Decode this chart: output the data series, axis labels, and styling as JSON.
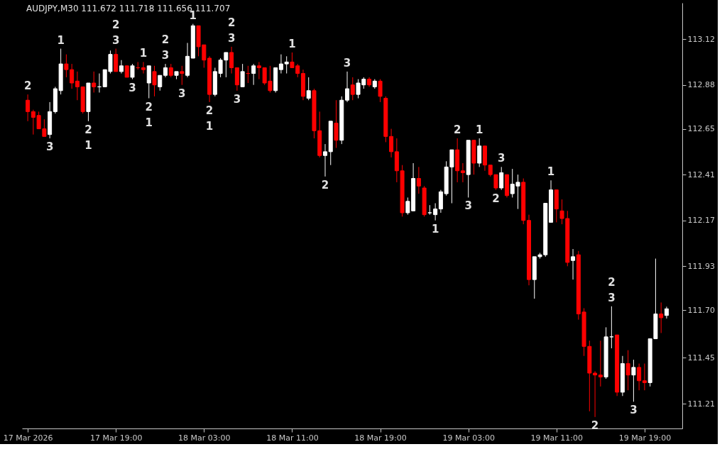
{
  "chart_data": {
    "type": "candlestick",
    "title": "AUDJPY,M30 111.672 111.718 111.656 111.707",
    "x": [
      "2026-03-17T11:00",
      "2026-03-17T11:30",
      "2026-03-17T12:00",
      "2026-03-17T12:30",
      "2026-03-17T13:00",
      "2026-03-17T13:30",
      "2026-03-17T14:00",
      "2026-03-17T14:30",
      "2026-03-17T15:00",
      "2026-03-17T15:30",
      "2026-03-17T16:00",
      "2026-03-17T16:30",
      "2026-03-17T17:00",
      "2026-03-17T17:30",
      "2026-03-17T18:00",
      "2026-03-17T18:30",
      "2026-03-17T19:00",
      "2026-03-17T19:30",
      "2026-03-17T20:00",
      "2026-03-17T20:30",
      "2026-03-17T21:00",
      "2026-03-17T21:30",
      "2026-03-17T22:00",
      "2026-03-17T22:30",
      "2026-03-17T23:00",
      "2026-03-17T23:30",
      "2026-03-18T00:00",
      "2026-03-18T00:30",
      "2026-03-18T01:00",
      "2026-03-18T01:30",
      "2026-03-18T02:00",
      "2026-03-18T02:30",
      "2026-03-18T03:00",
      "2026-03-18T03:30",
      "2026-03-18T04:00",
      "2026-03-18T04:30",
      "2026-03-18T05:00",
      "2026-03-18T05:30",
      "2026-03-18T06:00",
      "2026-03-18T06:30",
      "2026-03-18T07:00",
      "2026-03-18T07:30",
      "2026-03-18T08:00",
      "2026-03-18T08:30",
      "2026-03-18T09:00",
      "2026-03-18T09:30",
      "2026-03-18T10:00",
      "2026-03-18T10:30",
      "2026-03-18T11:00",
      "2026-03-18T11:30",
      "2026-03-18T12:00",
      "2026-03-18T12:30",
      "2026-03-18T13:00",
      "2026-03-18T13:30",
      "2026-03-18T14:00",
      "2026-03-18T14:30",
      "2026-03-18T15:00",
      "2026-03-18T15:30",
      "2026-03-18T16:00",
      "2026-03-18T16:30",
      "2026-03-18T17:00",
      "2026-03-18T17:30",
      "2026-03-18T18:00",
      "2026-03-18T18:30",
      "2026-03-18T19:00",
      "2026-03-18T19:30",
      "2026-03-18T20:00",
      "2026-03-18T20:30",
      "2026-03-18T21:00",
      "2026-03-18T21:30",
      "2026-03-18T22:00",
      "2026-03-18T22:30",
      "2026-03-18T23:00",
      "2026-03-18T23:30",
      "2026-03-19T00:00",
      "2026-03-19T00:30",
      "2026-03-19T01:00",
      "2026-03-19T01:30",
      "2026-03-19T02:00",
      "2026-03-19T02:30",
      "2026-03-19T03:00",
      "2026-03-19T03:30",
      "2026-03-19T04:00",
      "2026-03-19T04:30",
      "2026-03-19T05:00",
      "2026-03-19T05:30",
      "2026-03-19T06:00",
      "2026-03-19T06:30",
      "2026-03-19T07:00",
      "2026-03-19T07:30",
      "2026-03-19T08:00",
      "2026-03-19T08:30",
      "2026-03-19T09:00",
      "2026-03-19T09:30",
      "2026-03-19T10:00",
      "2026-03-19T10:30",
      "2026-03-19T11:00",
      "2026-03-19T11:30",
      "2026-03-19T12:00",
      "2026-03-19T12:30",
      "2026-03-19T13:00",
      "2026-03-19T13:30",
      "2026-03-19T14:00",
      "2026-03-19T14:30",
      "2026-03-19T15:00",
      "2026-03-19T15:30",
      "2026-03-19T16:00",
      "2026-03-19T16:30",
      "2026-03-19T17:00",
      "2026-03-19T17:30",
      "2026-03-19T18:00",
      "2026-03-19T18:30",
      "2026-03-19T19:00",
      "2026-03-19T19:30",
      "2026-03-19T20:00",
      "2026-03-19T20:30",
      "2026-03-19T21:00"
    ],
    "ohlc": [
      [
        112.8,
        112.83,
        112.69,
        112.74
      ],
      [
        112.74,
        112.75,
        112.62,
        112.71
      ],
      [
        112.72,
        112.74,
        112.65,
        112.65
      ],
      [
        112.65,
        112.7,
        112.61,
        112.61
      ],
      [
        112.62,
        112.79,
        112.6,
        112.74
      ],
      [
        112.74,
        112.87,
        112.73,
        112.86
      ],
      [
        112.85,
        113.07,
        112.83,
        112.99
      ],
      [
        112.99,
        113.04,
        112.92,
        112.96
      ],
      [
        112.96,
        112.99,
        112.86,
        112.89
      ],
      [
        112.9,
        112.95,
        112.8,
        112.87
      ],
      [
        112.87,
        112.87,
        112.73,
        112.74
      ],
      [
        112.74,
        112.89,
        112.69,
        112.89
      ],
      [
        112.89,
        112.95,
        112.84,
        112.87
      ],
      [
        112.87,
        112.94,
        112.84,
        112.87
      ],
      [
        112.87,
        112.96,
        112.87,
        112.96
      ],
      [
        112.95,
        113.06,
        112.94,
        113.04
      ],
      [
        113.04,
        113.07,
        112.95,
        112.95
      ],
      [
        112.95,
        113.01,
        112.94,
        112.98
      ],
      [
        112.98,
        112.98,
        112.92,
        112.92
      ],
      [
        112.92,
        112.99,
        112.91,
        112.98
      ],
      [
        112.97,
        113.0,
        112.96,
        112.97
      ],
      [
        112.97,
        113.0,
        112.94,
        112.96
      ],
      [
        112.89,
        112.98,
        112.81,
        112.98
      ],
      [
        112.95,
        112.98,
        112.82,
        112.88
      ],
      [
        112.87,
        112.93,
        112.85,
        112.93
      ],
      [
        112.93,
        112.99,
        112.92,
        112.97
      ],
      [
        112.97,
        112.99,
        112.92,
        112.93
      ],
      [
        112.93,
        112.95,
        112.91,
        112.95
      ],
      [
        112.95,
        112.98,
        112.88,
        112.94
      ],
      [
        112.93,
        113.1,
        112.92,
        113.03
      ],
      [
        113.02,
        113.2,
        113.02,
        113.19
      ],
      [
        113.19,
        113.19,
        113.03,
        113.08
      ],
      [
        113.09,
        113.09,
        112.97,
        113.01
      ],
      [
        113.02,
        113.03,
        112.79,
        112.83
      ],
      [
        112.83,
        112.97,
        112.82,
        112.95
      ],
      [
        112.94,
        113.02,
        112.92,
        113.01
      ],
      [
        113.01,
        113.05,
        112.92,
        113.05
      ],
      [
        113.05,
        113.08,
        112.94,
        112.97
      ],
      [
        112.97,
        112.97,
        112.85,
        112.88
      ],
      [
        112.87,
        112.99,
        112.87,
        112.95
      ],
      [
        112.94,
        112.98,
        112.89,
        112.94
      ],
      [
        112.94,
        112.99,
        112.88,
        112.98
      ],
      [
        112.98,
        113.0,
        112.91,
        112.97
      ],
      [
        112.97,
        112.97,
        112.88,
        112.89
      ],
      [
        112.9,
        112.98,
        112.84,
        112.85
      ],
      [
        112.85,
        112.97,
        112.84,
        112.97
      ],
      [
        112.96,
        113.04,
        112.94,
        112.99
      ],
      [
        112.99,
        113.03,
        112.94,
        113.0
      ],
      [
        113.0,
        113.05,
        112.97,
        112.97
      ],
      [
        112.98,
        112.99,
        112.92,
        112.94
      ],
      [
        112.94,
        112.96,
        112.8,
        112.82
      ],
      [
        112.81,
        112.92,
        112.8,
        112.85
      ],
      [
        112.85,
        112.86,
        112.6,
        112.64
      ],
      [
        112.64,
        112.74,
        112.5,
        112.51
      ],
      [
        112.51,
        112.57,
        112.4,
        112.53
      ],
      [
        112.53,
        112.69,
        112.46,
        112.69
      ],
      [
        112.68,
        112.8,
        112.55,
        112.59
      ],
      [
        112.59,
        112.82,
        112.57,
        112.8
      ],
      [
        112.8,
        112.95,
        112.79,
        112.86
      ],
      [
        112.88,
        112.92,
        112.8,
        112.83
      ],
      [
        112.83,
        112.91,
        112.81,
        112.89
      ],
      [
        112.88,
        112.92,
        112.86,
        112.91
      ],
      [
        112.91,
        112.92,
        112.87,
        112.88
      ],
      [
        112.87,
        112.91,
        112.86,
        112.9
      ],
      [
        112.9,
        112.91,
        112.79,
        112.82
      ],
      [
        112.81,
        112.82,
        112.58,
        112.61
      ],
      [
        112.61,
        112.65,
        112.5,
        112.53
      ],
      [
        112.53,
        112.6,
        112.37,
        112.43
      ],
      [
        112.43,
        112.46,
        112.19,
        112.21
      ],
      [
        112.21,
        112.29,
        112.2,
        112.27
      ],
      [
        112.22,
        112.47,
        112.22,
        112.39
      ],
      [
        112.39,
        112.45,
        112.31,
        112.35
      ],
      [
        112.34,
        112.35,
        112.19,
        112.2
      ],
      [
        112.21,
        112.25,
        112.2,
        112.21
      ],
      [
        112.2,
        112.26,
        112.17,
        112.23
      ],
      [
        112.23,
        112.33,
        112.21,
        112.32
      ],
      [
        112.31,
        112.48,
        112.3,
        112.45
      ],
      [
        112.45,
        112.54,
        112.26,
        112.54
      ],
      [
        112.54,
        112.6,
        112.37,
        112.43
      ],
      [
        112.43,
        112.47,
        112.37,
        112.42
      ],
      [
        112.41,
        112.59,
        112.29,
        112.59
      ],
      [
        112.59,
        112.59,
        112.41,
        112.47
      ],
      [
        112.47,
        112.6,
        112.45,
        112.56
      ],
      [
        112.56,
        112.56,
        112.43,
        112.46
      ],
      [
        112.46,
        112.46,
        112.4,
        112.41
      ],
      [
        112.41,
        112.41,
        112.33,
        112.34
      ],
      [
        112.34,
        112.45,
        112.33,
        112.42
      ],
      [
        112.41,
        112.41,
        112.29,
        112.3
      ],
      [
        112.31,
        112.44,
        112.29,
        112.36
      ],
      [
        112.35,
        112.41,
        112.23,
        112.37
      ],
      [
        112.37,
        112.39,
        112.15,
        112.17
      ],
      [
        112.17,
        112.2,
        111.83,
        111.86
      ],
      [
        111.86,
        111.98,
        111.76,
        111.98
      ],
      [
        111.98,
        112.0,
        111.97,
        111.99
      ],
      [
        111.99,
        112.26,
        111.98,
        112.26
      ],
      [
        112.16,
        112.38,
        112.16,
        112.33
      ],
      [
        112.33,
        112.33,
        112.16,
        112.23
      ],
      [
        112.22,
        112.28,
        112.15,
        112.18
      ],
      [
        112.18,
        112.22,
        111.93,
        111.95
      ],
      [
        111.96,
        112.02,
        111.86,
        111.98
      ],
      [
        111.99,
        112.01,
        111.65,
        111.68
      ],
      [
        111.69,
        111.71,
        111.46,
        111.51
      ],
      [
        111.51,
        111.54,
        111.17,
        111.37
      ],
      [
        111.37,
        111.38,
        111.14,
        111.36
      ],
      [
        111.36,
        111.54,
        111.3,
        111.35
      ],
      [
        111.35,
        111.61,
        111.34,
        111.56
      ],
      [
        111.56,
        111.72,
        111.5,
        111.56
      ],
      [
        111.57,
        111.57,
        111.25,
        111.27
      ],
      [
        111.27,
        111.46,
        111.25,
        111.42
      ],
      [
        111.42,
        111.49,
        111.28,
        111.36
      ],
      [
        111.36,
        111.44,
        111.22,
        111.4
      ],
      [
        111.4,
        111.42,
        111.28,
        111.33
      ],
      [
        111.33,
        111.42,
        111.28,
        111.32
      ],
      [
        111.32,
        111.55,
        111.3,
        111.55
      ],
      [
        111.55,
        111.97,
        111.55,
        111.68
      ],
      [
        111.68,
        111.74,
        111.58,
        111.66
      ],
      [
        111.672,
        111.718,
        111.656,
        111.707
      ]
    ],
    "colors": [
      "#ff0000",
      "#ff0000",
      "#ff0000",
      "#ff0000",
      "#ffffff",
      "#ffffff",
      "#ffffff",
      "#ff0000",
      "#ff0000",
      "#ff0000",
      "#ff0000",
      "#ffffff",
      "#ff0000",
      "#ffffff",
      "#ffffff",
      "#ffffff",
      "#ff0000",
      "#ffffff",
      "#ff0000",
      "#ffffff",
      "#ff0000",
      "#ff0000",
      "#ffffff",
      "#ff0000",
      "#ffffff",
      "#ffffff",
      "#ff0000",
      "#ffffff",
      "#ff0000",
      "#ffffff",
      "#ffffff",
      "#ff0000",
      "#ff0000",
      "#ff0000",
      "#ffffff",
      "#ffffff",
      "#ffffff",
      "#ff0000",
      "#ff0000",
      "#ffffff",
      "#ff0000",
      "#ffffff",
      "#ff0000",
      "#ff0000",
      "#ff0000",
      "#ffffff",
      "#ffffff",
      "#ffffff",
      "#ff0000",
      "#ff0000",
      "#ff0000",
      "#ffffff",
      "#ff0000",
      "#ff0000",
      "#ffffff",
      "#ffffff",
      "#ff0000",
      "#ffffff",
      "#ffffff",
      "#ff0000",
      "#ffffff",
      "#ffffff",
      "#ff0000",
      "#ffffff",
      "#ff0000",
      "#ff0000",
      "#ff0000",
      "#ff0000",
      "#ff0000",
      "#ffffff",
      "#ffffff",
      "#ff0000",
      "#ff0000",
      "#ffffff",
      "#ffffff",
      "#ffffff",
      "#ffffff",
      "#ffffff",
      "#ff0000",
      "#ff0000",
      "#ffffff",
      "#ff0000",
      "#ffffff",
      "#ff0000",
      "#ff0000",
      "#ff0000",
      "#ffffff",
      "#ff0000",
      "#ffffff",
      "#ffffff",
      "#ff0000",
      "#ff0000",
      "#ffffff",
      "#ffffff",
      "#ffffff",
      "#ffffff",
      "#ff0000",
      "#ff0000",
      "#ff0000",
      "#ffffff",
      "#ff0000",
      "#ff0000",
      "#ff0000",
      "#ff0000",
      "#ff0000",
      "#ffffff",
      "#ffffff",
      "#ff0000",
      "#ffffff",
      "#ff0000",
      "#ffffff",
      "#ff0000",
      "#ff0000",
      "#ffffff",
      "#ffffff",
      "#ff0000",
      "#ffffff"
    ],
    "xlim": [
      "2026-03-17T10:48",
      "2026-03-19T22:06"
    ],
    "xticks": [
      {
        "value": "2026-03-17T11:00",
        "label": "17 Mar 2026"
      },
      {
        "value": "2026-03-17T19:00",
        "label": "17 Mar 19:00"
      },
      {
        "value": "2026-03-18T03:00",
        "label": "18 Mar 03:00"
      },
      {
        "value": "2026-03-18T11:00",
        "label": "18 Mar 11:00"
      },
      {
        "value": "2026-03-18T19:00",
        "label": "18 Mar 19:00"
      },
      {
        "value": "2026-03-19T03:00",
        "label": "19 Mar 03:00"
      },
      {
        "value": "2026-03-19T11:00",
        "label": "19 Mar 11:00"
      },
      {
        "value": "2026-03-19T19:00",
        "label": "19 Mar 19:00"
      }
    ],
    "ylim": [
      111.08,
      113.31
    ],
    "yticks": [
      113.12,
      112.88,
      112.65,
      112.41,
      112.17,
      111.93,
      {
        "value": 111.7,
        "label": "111.70"
      },
      111.45,
      111.21
    ],
    "grid": false,
    "annotations": [
      {
        "text": "2",
        "x": "2026-03-17T11:00",
        "y": 112.83
      },
      {
        "text": "3",
        "x": "2026-03-17T13:00",
        "y": 112.6
      },
      {
        "text": "1",
        "x": "2026-03-17T14:00",
        "y": 113.07
      },
      {
        "text": "2",
        "x": "2026-03-17T16:30",
        "y": 112.69
      },
      {
        "text": "1",
        "x": "2026-03-17T16:30",
        "y": 112.69
      },
      {
        "text": "3",
        "x": "2026-03-17T19:00",
        "y": 113.07
      },
      {
        "text": "2",
        "x": "2026-03-17T19:00",
        "y": 113.07
      },
      {
        "text": "3",
        "x": "2026-03-17T20:30",
        "y": 112.91
      },
      {
        "text": "1",
        "x": "2026-03-17T21:30",
        "y": 113.0
      },
      {
        "text": "2",
        "x": "2026-03-17T22:00",
        "y": 112.81
      },
      {
        "text": "1",
        "x": "2026-03-17T22:00",
        "y": 112.81
      },
      {
        "text": "3",
        "x": "2026-03-17T23:30",
        "y": 112.99
      },
      {
        "text": "2",
        "x": "2026-03-17T23:30",
        "y": 112.99
      },
      {
        "text": "3",
        "x": "2026-03-18T01:00",
        "y": 112.88
      },
      {
        "text": "1",
        "x": "2026-03-18T02:00",
        "y": 113.2
      },
      {
        "text": "2",
        "x": "2026-03-18T03:30",
        "y": 112.79
      },
      {
        "text": "1",
        "x": "2026-03-18T03:30",
        "y": 112.79
      },
      {
        "text": "3",
        "x": "2026-03-18T05:30",
        "y": 113.08
      },
      {
        "text": "2",
        "x": "2026-03-18T05:30",
        "y": 113.08
      },
      {
        "text": "3",
        "x": "2026-03-18T06:00",
        "y": 112.85
      },
      {
        "text": "1",
        "x": "2026-03-18T11:00",
        "y": 113.05
      },
      {
        "text": "2",
        "x": "2026-03-18T14:00",
        "y": 112.4
      },
      {
        "text": "3",
        "x": "2026-03-18T16:00",
        "y": 112.95
      },
      {
        "text": "1",
        "x": "2026-03-19T00:00",
        "y": 112.17
      },
      {
        "text": "2",
        "x": "2026-03-19T02:00",
        "y": 112.6
      },
      {
        "text": "3",
        "x": "2026-03-19T03:00",
        "y": 112.29
      },
      {
        "text": "1",
        "x": "2026-03-19T04:00",
        "y": 112.6
      },
      {
        "text": "2",
        "x": "2026-03-19T05:30",
        "y": 112.33
      },
      {
        "text": "3",
        "x": "2026-03-19T06:00",
        "y": 112.45
      },
      {
        "text": "1",
        "x": "2026-03-19T10:30",
        "y": 112.38
      },
      {
        "text": "2",
        "x": "2026-03-19T14:30",
        "y": 111.14
      },
      {
        "text": "3",
        "x": "2026-03-19T16:00",
        "y": 111.72
      },
      {
        "text": "2",
        "x": "2026-03-19T16:00",
        "y": 111.72
      },
      {
        "text": "3",
        "x": "2026-03-19T18:00",
        "y": 111.22
      }
    ]
  }
}
